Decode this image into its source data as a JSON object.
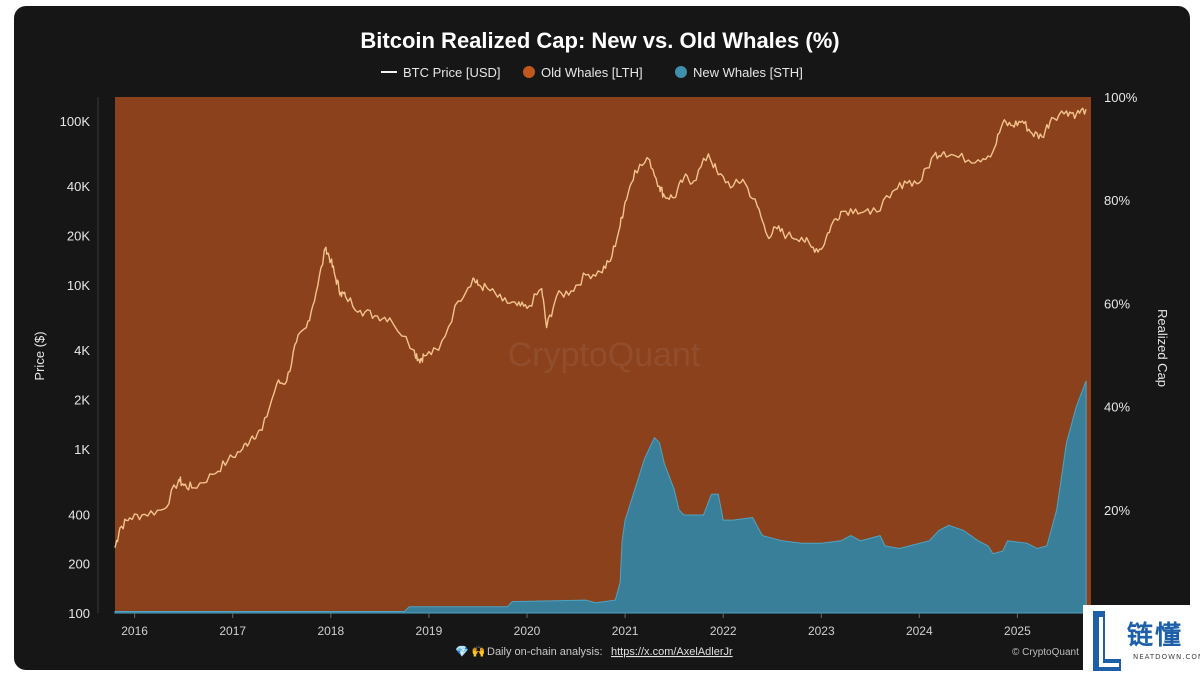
{
  "chart_data": {
    "type": "area",
    "title": "Bitcoin Realized Cap: New vs. Old Whales (%)",
    "legend": [
      {
        "label": "BTC Price [USD]",
        "marker": "line",
        "color": "#f2c08a"
      },
      {
        "label": "Old Whales [LTH]",
        "marker": "dot",
        "color": "#c0581e"
      },
      {
        "label": "New Whales [STH]",
        "marker": "dot",
        "color": "#3f8fae"
      }
    ],
    "ylabel_left": "Price ($)",
    "ylabel_right": "Realized Cap",
    "y_left_scale": "log",
    "y_left_ticks": [
      {
        "label": "100K",
        "value": 100000
      },
      {
        "label": "40K",
        "value": 40000
      },
      {
        "label": "20K",
        "value": 20000
      },
      {
        "label": "10K",
        "value": 10000
      },
      {
        "label": "4K",
        "value": 4000
      },
      {
        "label": "2K",
        "value": 2000
      },
      {
        "label": "1K",
        "value": 1000
      },
      {
        "label": "400",
        "value": 400
      },
      {
        "label": "200",
        "value": 200
      },
      {
        "label": "100",
        "value": 100
      }
    ],
    "y_right_ticks": [
      {
        "label": "100%",
        "value": 100
      },
      {
        "label": "80%",
        "value": 80
      },
      {
        "label": "60%",
        "value": 60
      },
      {
        "label": "40%",
        "value": 40
      },
      {
        "label": "20%",
        "value": 20
      }
    ],
    "x_ticks": [
      "2016",
      "2017",
      "2018",
      "2019",
      "2020",
      "2021",
      "2022",
      "2023",
      "2024",
      "2025"
    ],
    "xlim": [
      2015.8,
      2025.75
    ],
    "ylim_left": [
      100,
      140000
    ],
    "ylim_right": [
      0,
      100
    ],
    "grid": false,
    "series": [
      {
        "name": "BTC Price [USD]",
        "axis": "left",
        "x": [
          2015.8,
          2015.85,
          2015.95,
          2016.1,
          2016.3,
          2016.45,
          2016.5,
          2016.6,
          2016.8,
          2016.95,
          2017.1,
          2017.2,
          2017.3,
          2017.45,
          2017.55,
          2017.65,
          2017.75,
          2017.85,
          2017.95,
          2018.0,
          2018.05,
          2018.1,
          2018.15,
          2018.3,
          2018.45,
          2018.6,
          2018.85,
          2018.9,
          2018.95,
          2019.1,
          2019.3,
          2019.45,
          2019.5,
          2019.6,
          2019.75,
          2019.9,
          2020.0,
          2020.15,
          2020.2,
          2020.3,
          2020.45,
          2020.6,
          2020.75,
          2020.85,
          2020.95,
          2021.0,
          2021.1,
          2021.25,
          2021.35,
          2021.4,
          2021.5,
          2021.6,
          2021.7,
          2021.85,
          2021.95,
          2022.1,
          2022.2,
          2022.35,
          2022.45,
          2022.55,
          2022.65,
          2022.8,
          2022.9,
          2023.0,
          2023.1,
          2023.2,
          2023.35,
          2023.5,
          2023.7,
          2023.85,
          2024.0,
          2024.15,
          2024.25,
          2024.4,
          2024.6,
          2024.75,
          2024.85,
          2024.95,
          2025.05,
          2025.15,
          2025.25,
          2025.35,
          2025.5,
          2025.6,
          2025.7
        ],
        "y": [
          250,
          330,
          380,
          400,
          430,
          650,
          600,
          580,
          700,
          850,
          1000,
          1200,
          1300,
          2500,
          2600,
          4500,
          5500,
          9000,
          17000,
          14000,
          11000,
          9000,
          8500,
          7000,
          6500,
          6300,
          4000,
          3500,
          3700,
          4000,
          8000,
          11000,
          10000,
          9500,
          8000,
          7500,
          7200,
          9500,
          5500,
          8500,
          9200,
          11500,
          12000,
          14000,
          23000,
          32000,
          50000,
          58000,
          40000,
          35000,
          34000,
          45000,
          43000,
          63000,
          47000,
          40000,
          44000,
          30000,
          20000,
          22000,
          20000,
          19500,
          17000,
          16500,
          23000,
          28000,
          29000,
          27000,
          34000,
          43000,
          42000,
          62000,
          65000,
          60000,
          58000,
          65000,
          97000,
          94000,
          100000,
          84000,
          80000,
          105000,
          115000,
          110000,
          118000
        ]
      },
      {
        "name": "Old Whales [LTH]",
        "axis": "right",
        "note": "complement of New Whales; fills to 100%"
      },
      {
        "name": "New Whales [STH]",
        "axis": "right",
        "x": [
          2015.8,
          2018.75,
          2018.8,
          2019.8,
          2019.85,
          2020.6,
          2020.7,
          2020.9,
          2020.95,
          2020.97,
          2021.0,
          2021.1,
          2021.2,
          2021.3,
          2021.35,
          2021.4,
          2021.5,
          2021.55,
          2021.6,
          2021.8,
          2021.88,
          2021.95,
          2022.0,
          2022.1,
          2022.3,
          2022.4,
          2022.5,
          2022.6,
          2022.8,
          2023.0,
          2023.2,
          2023.3,
          2023.4,
          2023.6,
          2023.65,
          2023.8,
          2023.9,
          2024.1,
          2024.2,
          2024.3,
          2024.45,
          2024.6,
          2024.7,
          2024.75,
          2024.85,
          2024.9,
          2025.1,
          2025.2,
          2025.3,
          2025.4,
          2025.5,
          2025.6,
          2025.7
        ],
        "y": [
          0.3,
          0.3,
          1.2,
          1.2,
          2.2,
          2.5,
          2.0,
          2.5,
          6.0,
          14.0,
          18.0,
          24.0,
          30.0,
          34.0,
          33.0,
          29.0,
          24.0,
          20.0,
          19.0,
          19.0,
          23.0,
          23.0,
          18.0,
          18.0,
          18.5,
          15.0,
          14.5,
          14.0,
          13.5,
          13.5,
          14.0,
          15.0,
          14.0,
          15.0,
          13.0,
          12.5,
          13.0,
          14.0,
          16.0,
          17.0,
          16.0,
          14.0,
          13.0,
          11.5,
          12.0,
          14.0,
          13.5,
          12.5,
          13.0,
          20.0,
          33.0,
          40.0,
          45.0
        ]
      }
    ],
    "watermark": "CryptoQuant"
  },
  "footer": {
    "icons": "💎 🙌",
    "text": "Daily on-chain analysis:",
    "link": "https://x.com/AxelAdlerJr",
    "copyright": "© CryptoQuant"
  },
  "logo": {
    "letter": "L",
    "cn_text": "链懂",
    "en_text": "NEATDOWN.COM"
  }
}
